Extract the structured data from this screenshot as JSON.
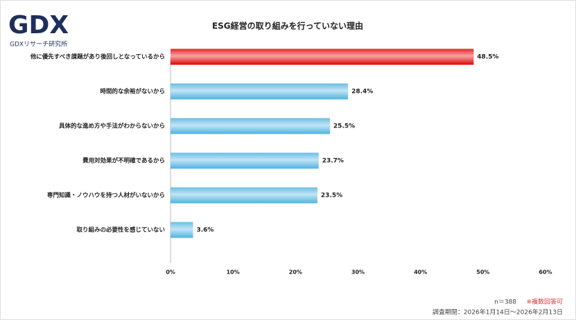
{
  "logo": {
    "mark": "GDX",
    "name": "GDXリサーチ研究所"
  },
  "chart_data": {
    "type": "bar",
    "orientation": "horizontal",
    "title": "ESG経営の取り組みを行っていない理由",
    "categories": [
      "他に優先すべき課題があり後回しとなっているから",
      "時間的な余裕がないから",
      "具体的な進め方や手法がわからないから",
      "費用対効果が不明確であるから",
      "専門知識・ノウハウを持つ人材がいないから",
      "取り組みの必要性を感じていない"
    ],
    "values": [
      48.5,
      28.4,
      25.5,
      23.7,
      23.5,
      3.6
    ],
    "value_labels": [
      "48.5%",
      "28.4%",
      "25.5%",
      "23.7%",
      "23.5%",
      "3.6%"
    ],
    "colors": [
      "#e00000",
      "#4fb3e0",
      "#4fb3e0",
      "#4fb3e0",
      "#4fb3e0",
      "#4fb3e0"
    ],
    "xlim": [
      0,
      60
    ],
    "xticks": [
      {
        "value": 0,
        "label": "0%"
      },
      {
        "value": 10,
        "label": "10%"
      },
      {
        "value": 20,
        "label": "20%"
      },
      {
        "value": 30,
        "label": "30%"
      },
      {
        "value": 40,
        "label": "40%"
      },
      {
        "value": 50,
        "label": "50%"
      },
      {
        "value": 60,
        "label": "60%"
      }
    ],
    "grid": false,
    "sample_size": "n＝388",
    "note": "※複数回答可",
    "period": "調査期間：2026年1月14日～2026年2月13日"
  }
}
